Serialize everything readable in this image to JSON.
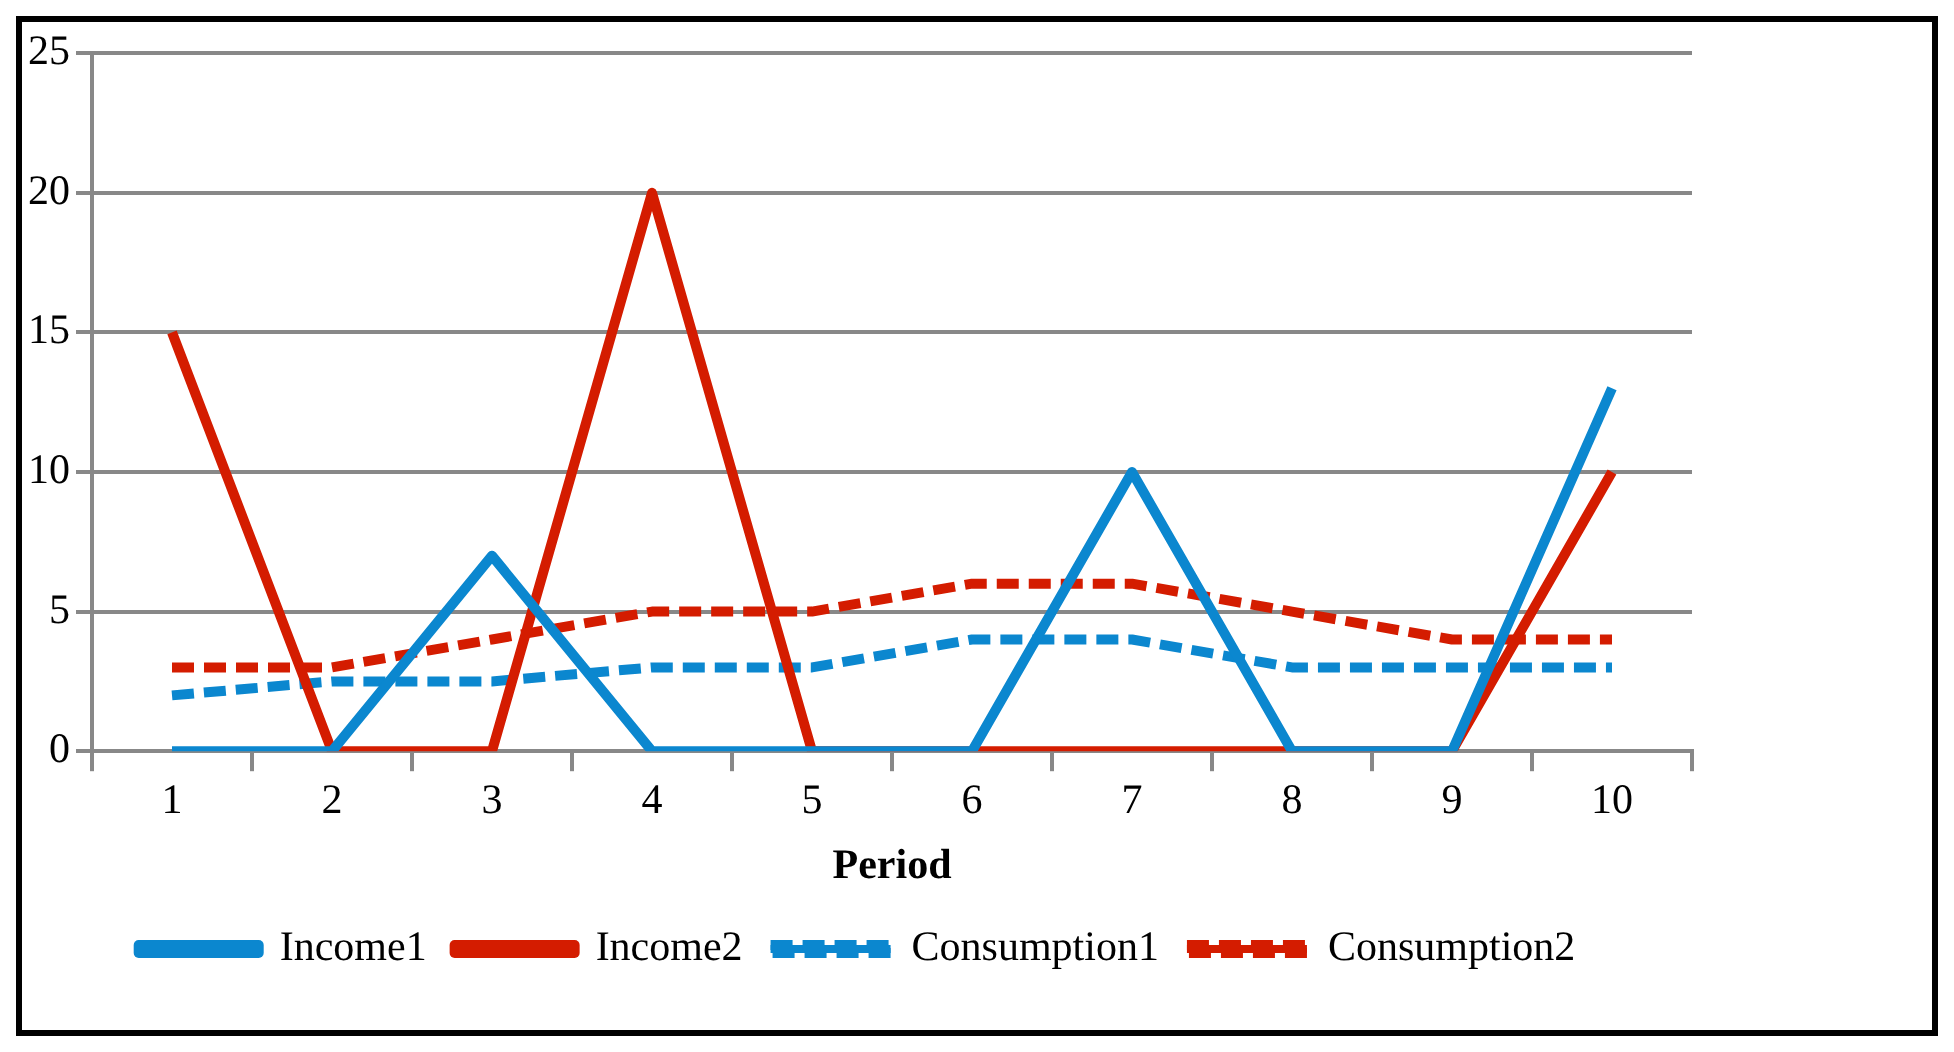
{
  "chart_data": {
    "type": "line",
    "xlabel": "Period",
    "categories": [
      "1",
      "2",
      "3",
      "4",
      "5",
      "6",
      "7",
      "8",
      "9",
      "10"
    ],
    "series": [
      {
        "name": "Income1",
        "color": "#0b87cf",
        "line_style": "solid",
        "values": [
          0,
          0,
          7,
          0,
          0,
          0,
          10,
          0,
          0,
          13
        ]
      },
      {
        "name": "Income2",
        "color": "#d41c00",
        "line_style": "solid",
        "values": [
          15,
          0,
          0,
          20,
          0,
          0,
          0,
          0,
          0,
          10
        ]
      },
      {
        "name": "Consumption1",
        "color": "#0b87cf",
        "line_style": "dashed",
        "values": [
          2,
          2.5,
          2.5,
          3,
          3,
          4,
          4,
          3,
          3,
          3
        ]
      },
      {
        "name": "Consumption2",
        "color": "#d41c00",
        "line_style": "dashed",
        "values": [
          3,
          3,
          4,
          5,
          5,
          6,
          6,
          5,
          4,
          4
        ]
      }
    ],
    "ylim": [
      0,
      25
    ],
    "yticks": [
      0,
      5,
      10,
      15,
      20,
      25
    ],
    "grid": "y",
    "legend": "bottom",
    "marker": "none"
  }
}
